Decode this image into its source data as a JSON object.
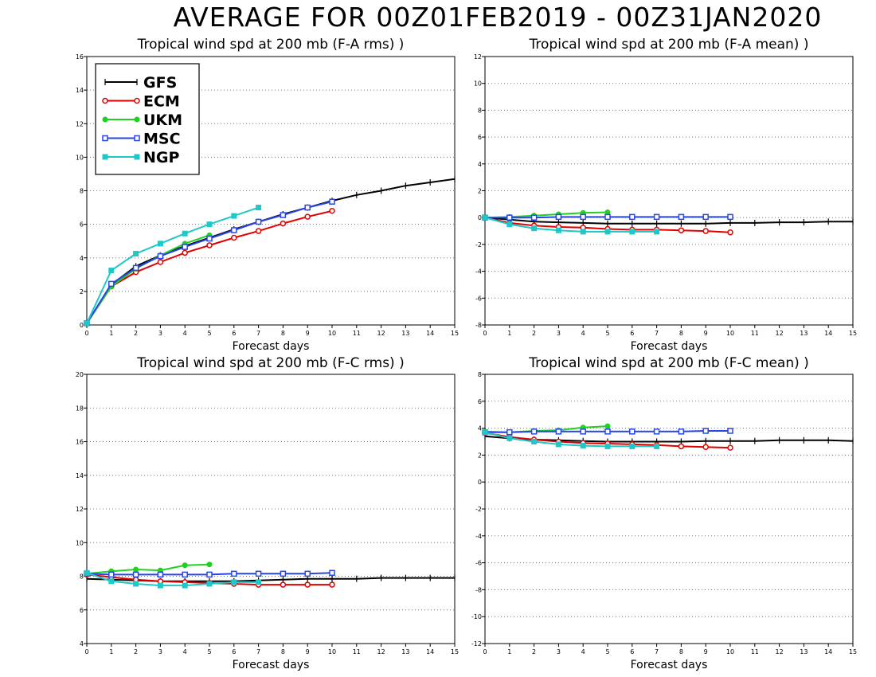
{
  "page": {
    "title": "AVERAGE FOR 00Z01FEB2019 - 00Z31JAN2020"
  },
  "legend": {
    "entries": [
      {
        "name": "GFS",
        "color": "#000000",
        "marker": "plus"
      },
      {
        "name": "ECM",
        "color": "#e00000",
        "marker": "open-circle"
      },
      {
        "name": "UKM",
        "color": "#1ed21e",
        "marker": "filled-circle"
      },
      {
        "name": "MSC",
        "color": "#2846e6",
        "marker": "open-square"
      },
      {
        "name": "NGP",
        "color": "#1ec8c8",
        "marker": "filled-square"
      }
    ]
  },
  "chart_data": [
    {
      "type": "line",
      "title": "Tropical wind spd at 200 mb (F-A rms) )",
      "xlabel": "Forecast days",
      "ylabel": "",
      "xlim": [
        0,
        15
      ],
      "ylim": [
        0,
        16
      ],
      "yticks": [
        0,
        2,
        4,
        6,
        8,
        10,
        12,
        14,
        16
      ],
      "xticks": [
        0,
        1,
        2,
        3,
        4,
        5,
        6,
        7,
        8,
        9,
        10,
        11,
        12,
        13,
        14,
        15
      ],
      "grid": true,
      "legend": "top-left",
      "series": [
        {
          "name": "GFS",
          "x": [
            0,
            1,
            2,
            3,
            4,
            5,
            6,
            7,
            8,
            9,
            10,
            11,
            12,
            13,
            14,
            15
          ],
          "values": [
            0.1,
            2.4,
            3.5,
            4.15,
            4.7,
            5.2,
            5.7,
            6.15,
            6.6,
            7.0,
            7.4,
            7.75,
            8.0,
            8.3,
            8.5,
            8.7
          ]
        },
        {
          "name": "ECM",
          "x": [
            0,
            1,
            2,
            3,
            4,
            5,
            6,
            7,
            8,
            9,
            10
          ],
          "values": [
            0.1,
            2.3,
            3.15,
            3.75,
            4.3,
            4.75,
            5.2,
            5.6,
            6.05,
            6.45,
            6.8
          ]
        },
        {
          "name": "UKM",
          "x": [
            0,
            1,
            2,
            3,
            4,
            5
          ],
          "values": [
            0.1,
            2.3,
            3.35,
            4.15,
            4.85,
            5.35
          ]
        },
        {
          "name": "MSC",
          "x": [
            0,
            1,
            2,
            3,
            4,
            5,
            6,
            7,
            8,
            9,
            10
          ],
          "values": [
            0.1,
            2.45,
            3.4,
            4.1,
            4.65,
            5.15,
            5.65,
            6.15,
            6.55,
            7.0,
            7.35
          ]
        },
        {
          "name": "NGP",
          "x": [
            0,
            1,
            2,
            3,
            4,
            5,
            6,
            7
          ],
          "values": [
            0.1,
            3.25,
            4.25,
            4.85,
            5.45,
            6.0,
            6.5,
            7.0
          ]
        }
      ]
    },
    {
      "type": "line",
      "title": "Tropical wind spd at 200 mb (F-A mean) )",
      "xlabel": "Forecast days",
      "ylabel": "",
      "xlim": [
        0,
        15
      ],
      "ylim": [
        -8,
        12
      ],
      "yticks": [
        -8,
        -6,
        -4,
        -2,
        0,
        2,
        4,
        6,
        8,
        10,
        12
      ],
      "xticks": [
        0,
        1,
        2,
        3,
        4,
        5,
        6,
        7,
        8,
        9,
        10,
        11,
        12,
        13,
        14,
        15
      ],
      "grid": true,
      "series": [
        {
          "name": "GFS",
          "x": [
            0,
            1,
            2,
            3,
            4,
            5,
            6,
            7,
            8,
            9,
            10,
            11,
            12,
            13,
            14,
            15
          ],
          "values": [
            0.0,
            -0.15,
            -0.3,
            -0.35,
            -0.4,
            -0.45,
            -0.45,
            -0.45,
            -0.45,
            -0.45,
            -0.4,
            -0.4,
            -0.35,
            -0.35,
            -0.3,
            -0.3
          ]
        },
        {
          "name": "ECM",
          "x": [
            0,
            1,
            2,
            3,
            4,
            5,
            6,
            7,
            8,
            9,
            10
          ],
          "values": [
            0.0,
            -0.4,
            -0.6,
            -0.7,
            -0.75,
            -0.85,
            -0.9,
            -0.9,
            -0.95,
            -1.0,
            -1.1
          ]
        },
        {
          "name": "UKM",
          "x": [
            0,
            1,
            2,
            3,
            4,
            5
          ],
          "values": [
            0.0,
            0.05,
            0.15,
            0.25,
            0.35,
            0.4
          ]
        },
        {
          "name": "MSC",
          "x": [
            0,
            1,
            2,
            3,
            4,
            5,
            6,
            7,
            8,
            9,
            10
          ],
          "values": [
            0.0,
            0.0,
            0.0,
            0.05,
            0.05,
            0.05,
            0.05,
            0.05,
            0.05,
            0.05,
            0.05
          ]
        },
        {
          "name": "NGP",
          "x": [
            0,
            1,
            2,
            3,
            4,
            5,
            6,
            7
          ],
          "values": [
            0.0,
            -0.5,
            -0.8,
            -0.95,
            -1.05,
            -1.05,
            -1.05,
            -1.05
          ]
        }
      ]
    },
    {
      "type": "line",
      "title": "Tropical wind spd at 200 mb (F-C rms) )",
      "xlabel": "Forecast days",
      "ylabel": "",
      "xlim": [
        0,
        15
      ],
      "ylim": [
        4,
        20
      ],
      "yticks": [
        4,
        6,
        8,
        10,
        12,
        14,
        16,
        18,
        20
      ],
      "xticks": [
        0,
        1,
        2,
        3,
        4,
        5,
        6,
        7,
        8,
        9,
        10,
        11,
        12,
        13,
        14,
        15
      ],
      "grid": true,
      "series": [
        {
          "name": "GFS",
          "x": [
            0,
            1,
            2,
            3,
            4,
            5,
            6,
            7,
            8,
            9,
            10,
            11,
            12,
            13,
            14,
            15
          ],
          "values": [
            7.85,
            7.8,
            7.75,
            7.7,
            7.7,
            7.7,
            7.7,
            7.75,
            7.8,
            7.85,
            7.85,
            7.85,
            7.9,
            7.9,
            7.9,
            7.9
          ]
        },
        {
          "name": "ECM",
          "x": [
            0,
            1,
            2,
            3,
            4,
            5,
            6,
            7,
            8,
            9,
            10
          ],
          "values": [
            8.1,
            7.95,
            7.8,
            7.7,
            7.65,
            7.6,
            7.55,
            7.5,
            7.5,
            7.5,
            7.5
          ]
        },
        {
          "name": "UKM",
          "x": [
            0,
            1,
            2,
            3,
            4,
            5
          ],
          "values": [
            8.15,
            8.3,
            8.4,
            8.35,
            8.65,
            8.7
          ]
        },
        {
          "name": "MSC",
          "x": [
            0,
            1,
            2,
            3,
            4,
            5,
            6,
            7,
            8,
            9,
            10
          ],
          "values": [
            8.15,
            8.1,
            8.1,
            8.1,
            8.1,
            8.1,
            8.15,
            8.15,
            8.15,
            8.15,
            8.2
          ]
        },
        {
          "name": "NGP",
          "x": [
            0,
            1,
            2,
            3,
            4,
            5,
            6,
            7
          ],
          "values": [
            8.2,
            7.7,
            7.55,
            7.45,
            7.45,
            7.55,
            7.65,
            7.65
          ]
        }
      ]
    },
    {
      "type": "line",
      "title": "Tropical wind spd at 200 mb (F-C mean) )",
      "xlabel": "Forecast days",
      "ylabel": "",
      "xlim": [
        0,
        15
      ],
      "ylim": [
        -12,
        8
      ],
      "yticks": [
        -12,
        -10,
        -8,
        -6,
        -4,
        -2,
        0,
        2,
        4,
        6,
        8
      ],
      "xticks": [
        0,
        1,
        2,
        3,
        4,
        5,
        6,
        7,
        8,
        9,
        10,
        11,
        12,
        13,
        14,
        15
      ],
      "grid": true,
      "series": [
        {
          "name": "GFS",
          "x": [
            0,
            1,
            2,
            3,
            4,
            5,
            6,
            7,
            8,
            9,
            10,
            11,
            12,
            13,
            14,
            15
          ],
          "values": [
            3.4,
            3.25,
            3.15,
            3.1,
            3.05,
            3.0,
            3.0,
            3.0,
            3.0,
            3.05,
            3.05,
            3.05,
            3.1,
            3.1,
            3.1,
            3.05
          ]
        },
        {
          "name": "ECM",
          "x": [
            0,
            1,
            2,
            3,
            4,
            5,
            6,
            7,
            8,
            9,
            10
          ],
          "values": [
            3.65,
            3.35,
            3.15,
            3.0,
            2.9,
            2.85,
            2.8,
            2.75,
            2.65,
            2.6,
            2.55
          ]
        },
        {
          "name": "UKM",
          "x": [
            0,
            1,
            2,
            3,
            4,
            5
          ],
          "values": [
            3.75,
            3.7,
            3.8,
            3.85,
            4.05,
            4.15
          ]
        },
        {
          "name": "MSC",
          "x": [
            0,
            1,
            2,
            3,
            4,
            5,
            6,
            7,
            8,
            9,
            10
          ],
          "values": [
            3.7,
            3.7,
            3.75,
            3.75,
            3.75,
            3.75,
            3.75,
            3.75,
            3.75,
            3.8,
            3.8
          ]
        },
        {
          "name": "NGP",
          "x": [
            0,
            1,
            2,
            3,
            4,
            5,
            6,
            7
          ],
          "values": [
            3.7,
            3.25,
            3.0,
            2.8,
            2.7,
            2.65,
            2.65,
            2.65
          ]
        }
      ]
    }
  ]
}
